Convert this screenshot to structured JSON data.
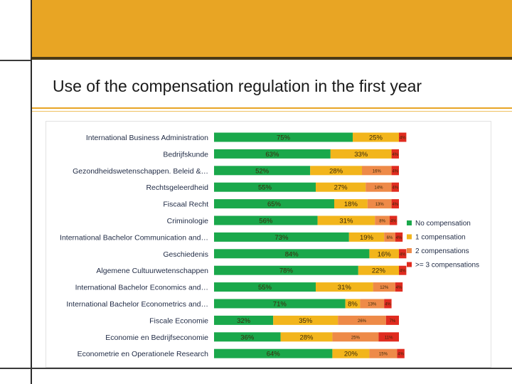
{
  "slide": {
    "title": "Use of the compensation regulation in the first year",
    "colors": {
      "band": "#e8a524",
      "band_edge": "#4a3a17",
      "rule": "#e8a524"
    }
  },
  "chart_data": {
    "type": "bar",
    "orientation": "horizontal",
    "stacked": true,
    "percent": true,
    "title": "",
    "xlabel": "",
    "ylabel": "",
    "xlim": [
      0,
      100
    ],
    "grid": false,
    "legend_position": "right",
    "categories": [
      "International Business Administration",
      "Bedrijfskunde",
      "Gezondheidswetenschappen. Beleid &…",
      "Rechtsgeleerdheid",
      "Fiscaal Recht",
      "Criminologie",
      "International Bachelor Communication and…",
      "Geschiedenis",
      "Algemene Cultuurwetenschappen",
      "International Bachelor Economics and…",
      "International Bachelor Econometrics and…",
      "Fiscale Economie",
      "Economie en Bedrijfseconomie",
      "Econometrie en Operationele Research"
    ],
    "series": [
      {
        "name": "No compensation",
        "color": "#1aa84b",
        "values": [
          75,
          63,
          52,
          55,
          65,
          56,
          73,
          84,
          78,
          55,
          71,
          32,
          36,
          64
        ]
      },
      {
        "name": "1 compensation",
        "color": "#f2b51c",
        "values": [
          25,
          33,
          28,
          27,
          18,
          31,
          19,
          16,
          22,
          31,
          8,
          35,
          28,
          20
        ]
      },
      {
        "name": "2 compensations",
        "color": "#ee8a48",
        "values": [
          0,
          0,
          16,
          14,
          13,
          8,
          6,
          0,
          0,
          12,
          13,
          26,
          25,
          15
        ]
      },
      {
        "name": ">= 3 compensations",
        "color": "#e02b1f",
        "values": [
          4,
          4,
          4,
          4,
          4,
          4,
          4,
          4,
          4,
          4,
          4,
          7,
          11,
          4
        ]
      }
    ],
    "data_labels": [
      [
        "75%",
        "25%",
        "",
        "4%"
      ],
      [
        "63%",
        "33%",
        "",
        "4%"
      ],
      [
        "52%",
        "28%",
        "16%",
        "4%"
      ],
      [
        "55%",
        "27%",
        "14%",
        "4%"
      ],
      [
        "65%",
        "18%",
        "13%",
        "4%"
      ],
      [
        "56%",
        "31%",
        "8%",
        "4%"
      ],
      [
        "73%",
        "19%",
        "6%",
        "4%"
      ],
      [
        "84%",
        "16%",
        "",
        "4%"
      ],
      [
        "78%",
        "22%",
        "",
        "4%"
      ],
      [
        "55%",
        "31%",
        "12%",
        "4%"
      ],
      [
        "71%",
        "8%",
        "13%",
        "4%"
      ],
      [
        "32%",
        "35%",
        "26%",
        "7%"
      ],
      [
        "36%",
        "28%",
        "25%",
        "11%"
      ],
      [
        "64%",
        "20%",
        "15%",
        "4%"
      ]
    ]
  }
}
